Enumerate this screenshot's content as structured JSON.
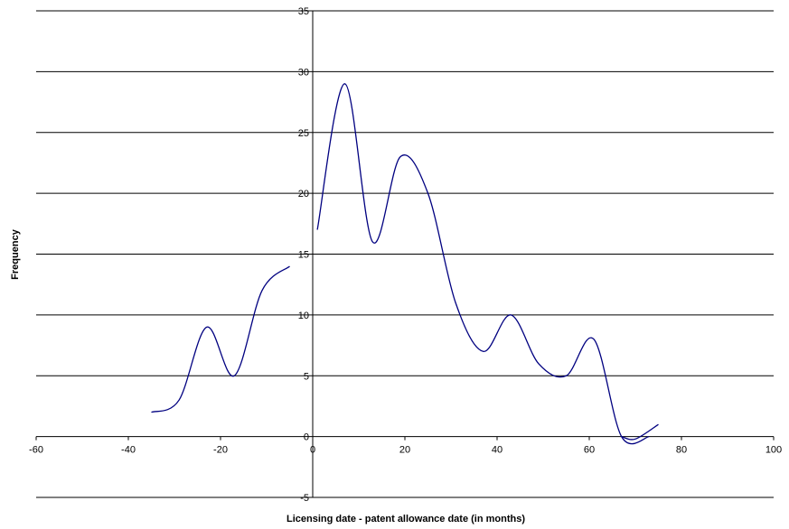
{
  "chart_data": {
    "type": "line",
    "title": "",
    "xlabel": "Licensing date - patent allowance date (in months)",
    "ylabel": "Frequency",
    "xlim": [
      -60,
      100
    ],
    "ylim": [
      -5,
      35
    ],
    "x_ticks": [
      -60,
      -40,
      -20,
      0,
      20,
      40,
      60,
      80,
      100
    ],
    "y_ticks": [
      -5,
      0,
      5,
      10,
      15,
      20,
      25,
      30,
      35
    ],
    "grid": "horizontal",
    "legend": "none",
    "line_color": "#000080",
    "series": [
      {
        "segment": 1,
        "x": [
          -35,
          -29,
          -23,
          -17,
          -11,
          -5
        ],
        "values": [
          2,
          3,
          9,
          5,
          12,
          14
        ]
      },
      {
        "segment": 2,
        "x": [
          1,
          7,
          13,
          19,
          25,
          31,
          37,
          43,
          49,
          55,
          61,
          67,
          73
        ],
        "values": [
          17,
          29,
          16,
          23,
          20,
          11,
          7,
          10,
          6,
          5,
          8,
          0,
          0
        ]
      },
      {
        "segment": 3,
        "x": [
          67,
          70,
          75
        ],
        "values": [
          0,
          -0.2,
          1
        ]
      }
    ]
  }
}
